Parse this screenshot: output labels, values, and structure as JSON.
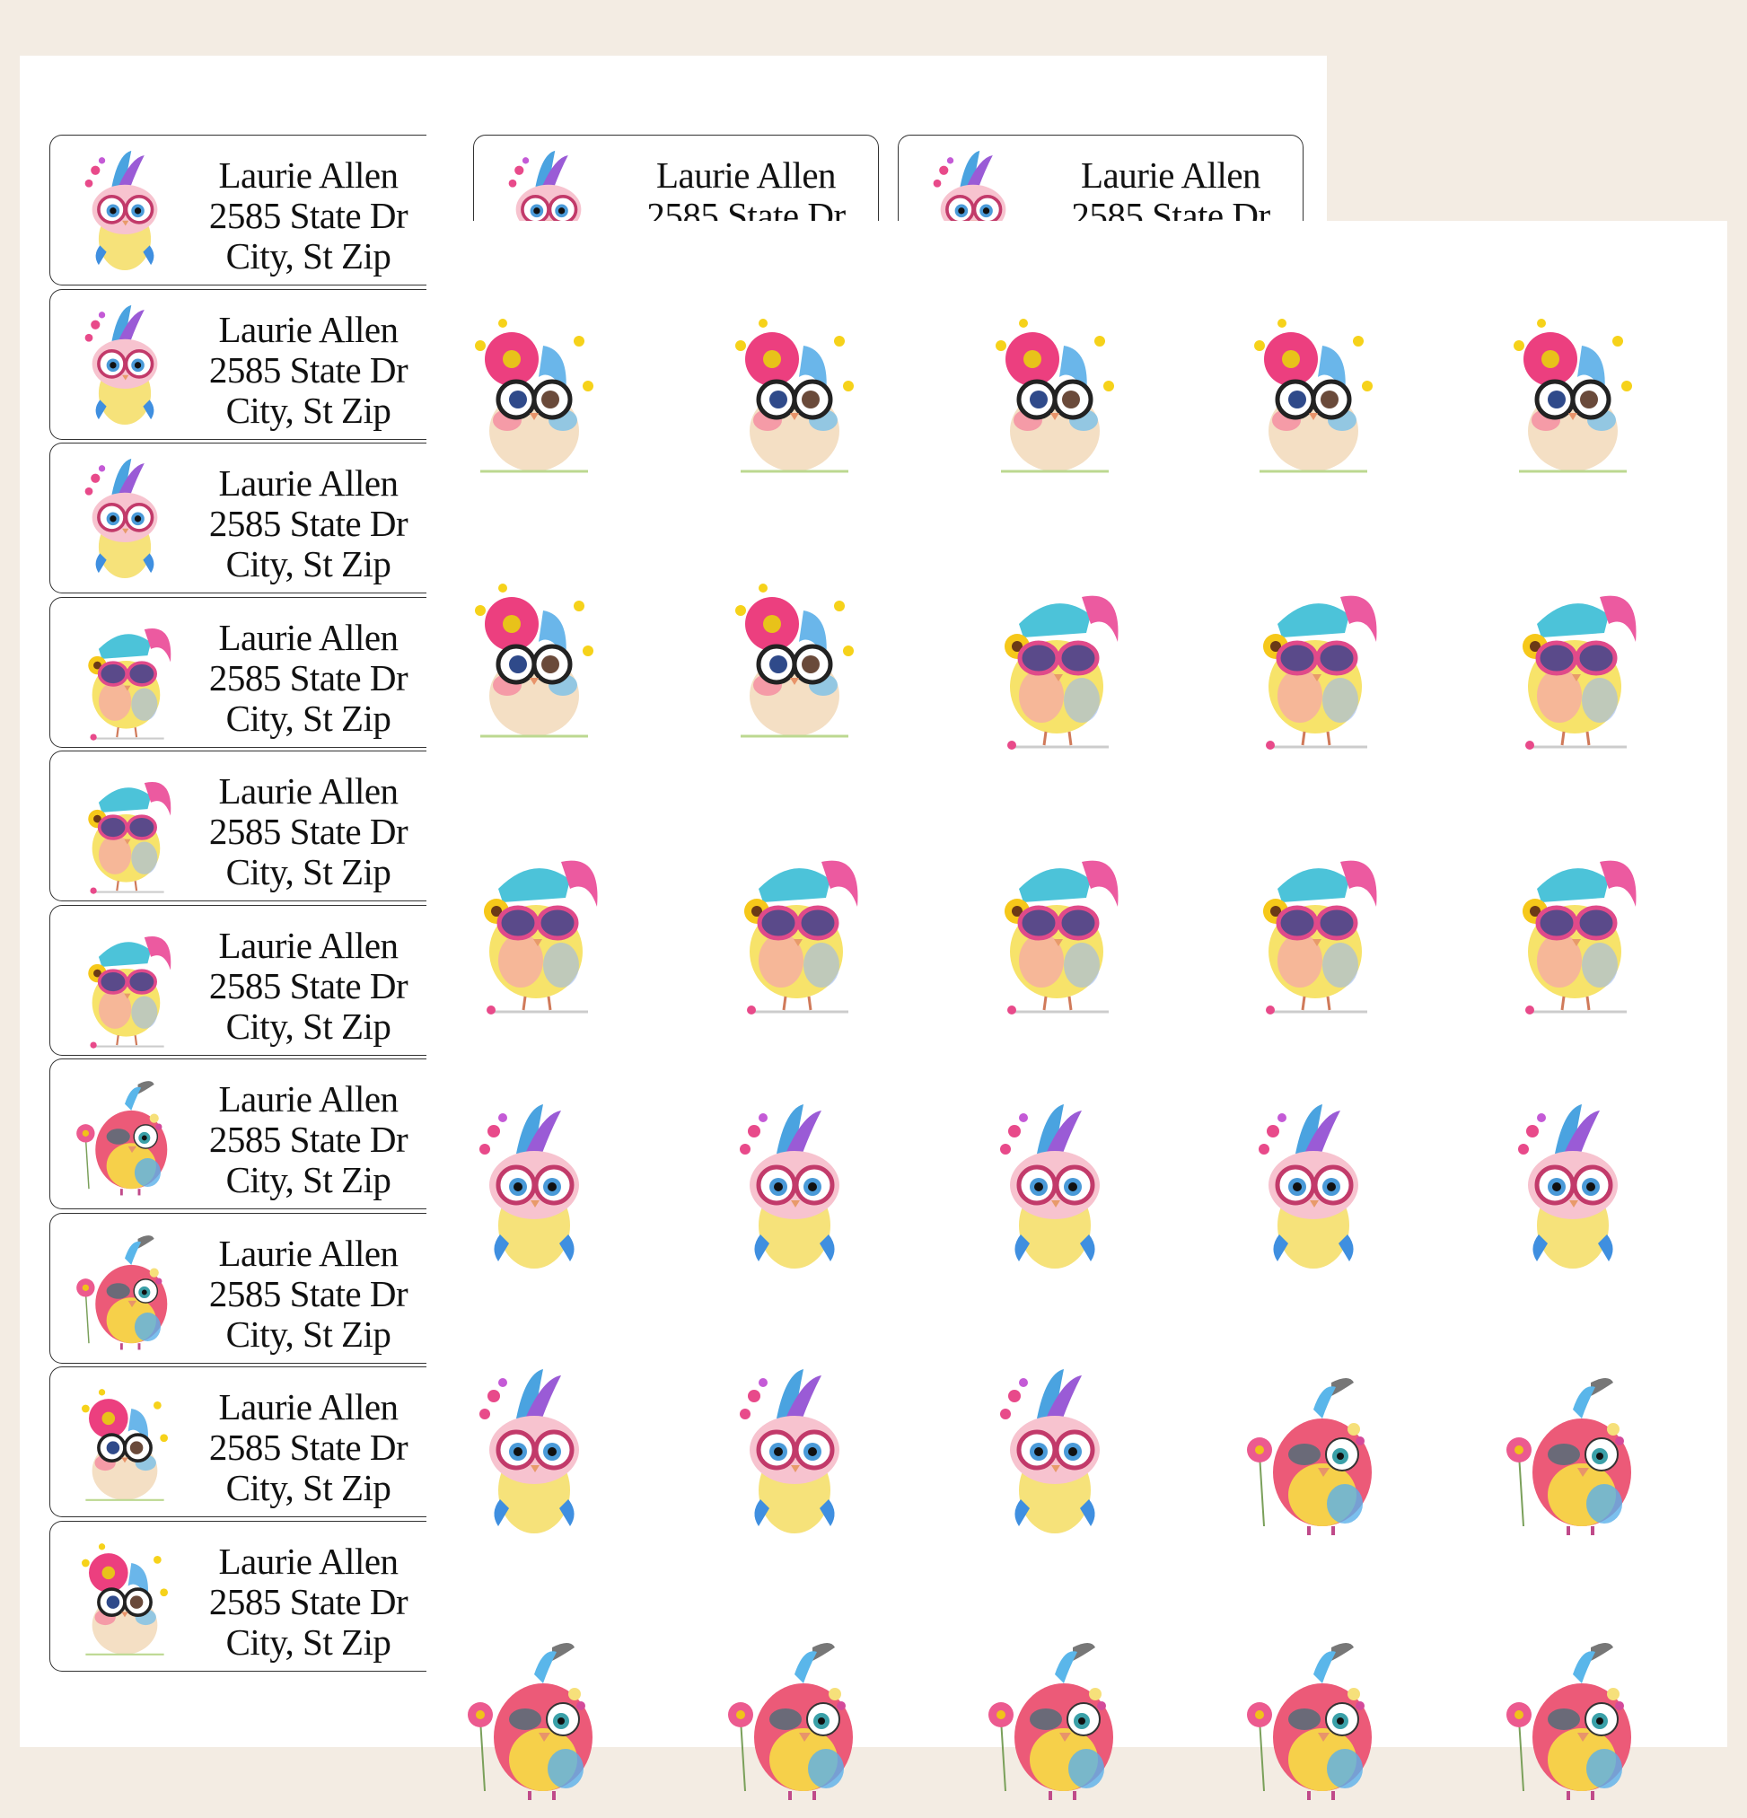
{
  "product": {
    "description": "Cute owl address labels and round sticker sheet mockup"
  },
  "address_label": {
    "name": "Laurie Allen",
    "street": "2585 State Dr",
    "city_line": "City, St Zip"
  },
  "label_sheet": {
    "columns": 3,
    "rows_visible": 10,
    "labels": [
      {
        "art": "blue-crest-pink-glasses-bird"
      },
      {
        "art": "blue-crest-pink-glasses-bird"
      },
      {
        "art": "blue-crest-pink-glasses-bird"
      },
      {
        "art": "cap-sunglasses-sunflower-bird"
      },
      {
        "art": "cap-sunglasses-sunflower-bird"
      },
      {
        "art": "cap-sunglasses-sunflower-bird"
      },
      {
        "art": "winking-rainbow-bird-with-flower"
      },
      {
        "art": "winking-rainbow-bird-with-flower"
      },
      {
        "art": "pink-daisy-black-glasses-bird"
      },
      {
        "art": "pink-daisy-black-glasses-bird"
      }
    ]
  },
  "sticker_sheet": {
    "columns": 5,
    "rows": [
      [
        "pink-daisy-black-glasses-bird",
        "pink-daisy-black-glasses-bird",
        "pink-daisy-black-glasses-bird",
        "pink-daisy-black-glasses-bird",
        "pink-daisy-black-glasses-bird"
      ],
      [
        "pink-daisy-black-glasses-bird",
        "pink-daisy-black-glasses-bird",
        "cap-sunglasses-sunflower-bird",
        "cap-sunglasses-sunflower-bird",
        "cap-sunglasses-sunflower-bird"
      ],
      [
        "cap-sunglasses-sunflower-bird",
        "cap-sunglasses-sunflower-bird",
        "cap-sunglasses-sunflower-bird",
        "cap-sunglasses-sunflower-bird",
        "cap-sunglasses-sunflower-bird"
      ],
      [
        "blue-crest-pink-glasses-bird",
        "blue-crest-pink-glasses-bird",
        "blue-crest-pink-glasses-bird",
        "blue-crest-pink-glasses-bird",
        "blue-crest-pink-glasses-bird"
      ],
      [
        "blue-crest-pink-glasses-bird",
        "blue-crest-pink-glasses-bird",
        "blue-crest-pink-glasses-bird",
        "winking-rainbow-bird-with-flower",
        "winking-rainbow-bird-with-flower"
      ],
      [
        "winking-rainbow-bird-with-flower",
        "winking-rainbow-bird-with-flower",
        "winking-rainbow-bird-with-flower",
        "winking-rainbow-bird-with-flower",
        "winking-rainbow-bird-with-flower"
      ]
    ]
  },
  "colors": {
    "background": "#f3ece3",
    "sheet": "#ffffff",
    "label_border": "#333333",
    "text": "#111111",
    "pink": "#e84a8a",
    "blue": "#4aa3e0",
    "yellow": "#f6d84a",
    "cap_teal": "#4cc3d9"
  }
}
